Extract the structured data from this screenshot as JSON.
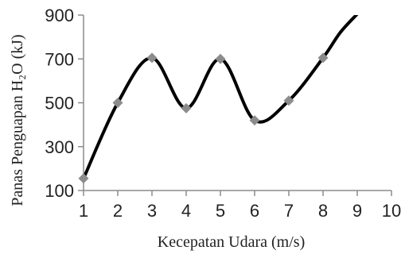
{
  "chart_data": {
    "type": "line",
    "title": "",
    "xlabel": "Kecepatan Udara (m/s)",
    "ylabel": "Panas Penguapan H₂O (kJ)",
    "xlim": [
      1,
      10
    ],
    "ylim": [
      100,
      900
    ],
    "x_ticks": [
      1,
      2,
      3,
      4,
      5,
      6,
      7,
      8,
      9,
      10
    ],
    "y_ticks": [
      100,
      300,
      500,
      700,
      900
    ],
    "grid": false,
    "legend": "none",
    "smooth": true,
    "series": [
      {
        "x": [
          1,
          2,
          3,
          4,
          5,
          6,
          7,
          8
        ],
        "y": [
          155,
          500,
          705,
          475,
          700,
          420,
          510,
          705
        ],
        "marker": "diamond",
        "line_color": "#000000",
        "marker_color": "#8c8c8c"
      }
    ],
    "curve_extension": {
      "x": [
        8,
        8.5,
        9
      ],
      "y": [
        705,
        820,
        905
      ]
    }
  }
}
